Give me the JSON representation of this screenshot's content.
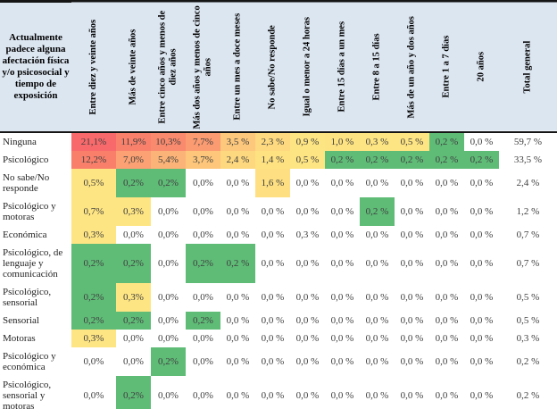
{
  "chart_data": {
    "type": "heatmap",
    "title": "Actualmente padece alguna afectación física y/o psicosocial y tiempo de exposición",
    "corner_header": "Actualmente padece alguna afectación física y/o psicosocial y tiempo de exposición",
    "column_headers": [
      "Entre diez y veinte años",
      "Más de veinte años",
      "Entre cinco años y menos de diez años",
      "Más dos años y menos de cinco años",
      "Entre un mes a doce meses",
      "No sabe/No responde",
      "Igual o menor a 24 horas",
      "Entre 15 días a un mes",
      "Entre 8 a 15 días",
      "Más de un año y dos años",
      "Entre 1 a 7 días",
      "20 años",
      "Total general"
    ],
    "legend_position": "none",
    "grid": false,
    "colors": {
      "header_bg": "#DCE6F1",
      "border": "#151515",
      "heat_red_max": "#F8696B",
      "heat_yellow_mid": "#FEE583",
      "heat_green_min": "#5FBC77",
      "empty_cell": "#FFFFFF"
    },
    "rows": [
      {
        "label": "Ninguna",
        "cells": [
          [
            "21,1%",
            "#F8696B"
          ],
          [
            "11,9%",
            "#F9816C"
          ],
          [
            "10,3%",
            "#FA8A6E"
          ],
          [
            "7,7%",
            "#FB9B71"
          ],
          [
            "3,5 %",
            "#FDC87C"
          ],
          [
            "2,3 %",
            "#FED97F"
          ],
          [
            "0,9 %",
            "#FEE583"
          ],
          [
            "1,0 %",
            "#FEE382"
          ],
          [
            "0,3 %",
            "#FEE583"
          ],
          [
            "0,5 %",
            "#FEE583"
          ],
          [
            "0,2 %",
            "#5FBC77"
          ],
          [
            "0,0 %",
            ""
          ],
          [
            "59,7 %",
            ""
          ]
        ]
      },
      {
        "label": "Psicológico",
        "cells": [
          [
            "12,2%",
            "#F97F6B"
          ],
          [
            "7,0%",
            "#FBA173"
          ],
          [
            "5,4%",
            "#FCB377"
          ],
          [
            "3,7%",
            "#FDC67B"
          ],
          [
            "2,4 %",
            "#FED87F"
          ],
          [
            "1,4 %",
            "#FEE181"
          ],
          [
            "0,5 %",
            "#FEE583"
          ],
          [
            "0,2 %",
            "#5FBC77"
          ],
          [
            "0,2 %",
            "#5FBC77"
          ],
          [
            "0,2 %",
            "#5FBC77"
          ],
          [
            "0,2 %",
            "#5FBC77"
          ],
          [
            "0,2 %",
            "#5FBC77"
          ],
          [
            "33,5 %",
            ""
          ]
        ]
      },
      {
        "label": "No sabe/No responde",
        "cells": [
          [
            "0,5%",
            "#FEE583"
          ],
          [
            "0,2%",
            "#5FBC77"
          ],
          [
            "0,2%",
            "#5FBC77"
          ],
          [
            "0,0%",
            ""
          ],
          [
            "0,0 %",
            ""
          ],
          [
            "1,6 %",
            "#FEDF81"
          ],
          [
            "0,0 %",
            ""
          ],
          [
            "0,0 %",
            ""
          ],
          [
            "0,0 %",
            ""
          ],
          [
            "0,0 %",
            ""
          ],
          [
            "0,0 %",
            ""
          ],
          [
            "0,0 %",
            ""
          ],
          [
            "2,4 %",
            ""
          ]
        ]
      },
      {
        "label": "Psicológico y motoras",
        "cells": [
          [
            "0,7%",
            "#FEE583"
          ],
          [
            "0,3%",
            "#FEE583"
          ],
          [
            "0,0%",
            ""
          ],
          [
            "0,0%",
            ""
          ],
          [
            "0,0 %",
            ""
          ],
          [
            "0,0 %",
            ""
          ],
          [
            "0,0 %",
            ""
          ],
          [
            "0,0 %",
            ""
          ],
          [
            "0,2 %",
            "#5FBC77"
          ],
          [
            "0,0 %",
            ""
          ],
          [
            "0,0 %",
            ""
          ],
          [
            "0,0 %",
            ""
          ],
          [
            "1,2 %",
            ""
          ]
        ]
      },
      {
        "label": "Económica",
        "cells": [
          [
            "0,3%",
            "#FEE583"
          ],
          [
            "0,0%",
            ""
          ],
          [
            "0,0%",
            ""
          ],
          [
            "0,0%",
            ""
          ],
          [
            "0,0 %",
            ""
          ],
          [
            "0,0 %",
            ""
          ],
          [
            "0,3 %",
            ""
          ],
          [
            "0,0 %",
            ""
          ],
          [
            "0,0 %",
            ""
          ],
          [
            "0,0 %",
            ""
          ],
          [
            "0,0 %",
            ""
          ],
          [
            "0,0 %",
            ""
          ],
          [
            "0,7 %",
            ""
          ]
        ]
      },
      {
        "label": "Psicológico, de lenguaje y comunicación",
        "cells": [
          [
            "0,2%",
            "#5FBC77"
          ],
          [
            "0,2%",
            "#5FBC77"
          ],
          [
            "0,0%",
            ""
          ],
          [
            "0,2%",
            "#5FBC77"
          ],
          [
            "0,2 %",
            "#5FBC77"
          ],
          [
            "0,0 %",
            ""
          ],
          [
            "0,0 %",
            ""
          ],
          [
            "0,0 %",
            ""
          ],
          [
            "0,0 %",
            ""
          ],
          [
            "0,0 %",
            ""
          ],
          [
            "0,0 %",
            ""
          ],
          [
            "0,0 %",
            ""
          ],
          [
            "0,7 %",
            ""
          ]
        ]
      },
      {
        "label": "Psicológico, sensorial",
        "cells": [
          [
            "0,2%",
            "#5FBC77"
          ],
          [
            "0,3%",
            "#FEE583"
          ],
          [
            "0,0%",
            ""
          ],
          [
            "0,0%",
            ""
          ],
          [
            "0,0 %",
            ""
          ],
          [
            "0,0 %",
            ""
          ],
          [
            "0,0 %",
            ""
          ],
          [
            "0,0 %",
            ""
          ],
          [
            "0,0 %",
            ""
          ],
          [
            "0,0 %",
            ""
          ],
          [
            "0,0 %",
            ""
          ],
          [
            "0,0 %",
            ""
          ],
          [
            "0,5 %",
            ""
          ]
        ]
      },
      {
        "label": "Sensorial",
        "cells": [
          [
            "0,2%",
            "#5FBC77"
          ],
          [
            "0,2%",
            "#5FBC77"
          ],
          [
            "0,0%",
            ""
          ],
          [
            "0,2%",
            "#5FBC77"
          ],
          [
            "0,0 %",
            ""
          ],
          [
            "0,0 %",
            ""
          ],
          [
            "0,0 %",
            ""
          ],
          [
            "0,0 %",
            ""
          ],
          [
            "0,0 %",
            ""
          ],
          [
            "0,0 %",
            ""
          ],
          [
            "0,0 %",
            ""
          ],
          [
            "0,0 %",
            ""
          ],
          [
            "0,5 %",
            ""
          ]
        ]
      },
      {
        "label": "Motoras",
        "cells": [
          [
            "0,3%",
            "#FEE583"
          ],
          [
            "0,0%",
            ""
          ],
          [
            "0,0%",
            ""
          ],
          [
            "0,0%",
            ""
          ],
          [
            "0,0 %",
            ""
          ],
          [
            "0,0 %",
            ""
          ],
          [
            "0,0 %",
            ""
          ],
          [
            "0,0 %",
            ""
          ],
          [
            "0,0 %",
            ""
          ],
          [
            "0,0 %",
            ""
          ],
          [
            "0,0 %",
            ""
          ],
          [
            "0,0 %",
            ""
          ],
          [
            "0,3 %",
            ""
          ]
        ]
      },
      {
        "label": "Psicológico y económica",
        "cells": [
          [
            "0,0%",
            ""
          ],
          [
            "0,0%",
            ""
          ],
          [
            "0,2%",
            "#5FBC77"
          ],
          [
            "0,0%",
            ""
          ],
          [
            "0,0 %",
            ""
          ],
          [
            "0,0 %",
            ""
          ],
          [
            "0,0 %",
            ""
          ],
          [
            "0,0 %",
            ""
          ],
          [
            "0,0 %",
            ""
          ],
          [
            "0,0 %",
            ""
          ],
          [
            "0,0 %",
            ""
          ],
          [
            "0,0 %",
            ""
          ],
          [
            "0,2 %",
            ""
          ]
        ]
      },
      {
        "label": "Psicológico, sensorial y motoras",
        "cells": [
          [
            "0,0%",
            ""
          ],
          [
            "0,2%",
            "#5FBC77"
          ],
          [
            "0,0%",
            ""
          ],
          [
            "0,0%",
            ""
          ],
          [
            "0,0 %",
            ""
          ],
          [
            "0,0 %",
            ""
          ],
          [
            "0,0 %",
            ""
          ],
          [
            "0,0 %",
            ""
          ],
          [
            "0,0 %",
            ""
          ],
          [
            "0,0 %",
            ""
          ],
          [
            "0,0 %",
            ""
          ],
          [
            "0,0 %",
            ""
          ],
          [
            "0,2 %",
            ""
          ]
        ]
      }
    ]
  }
}
